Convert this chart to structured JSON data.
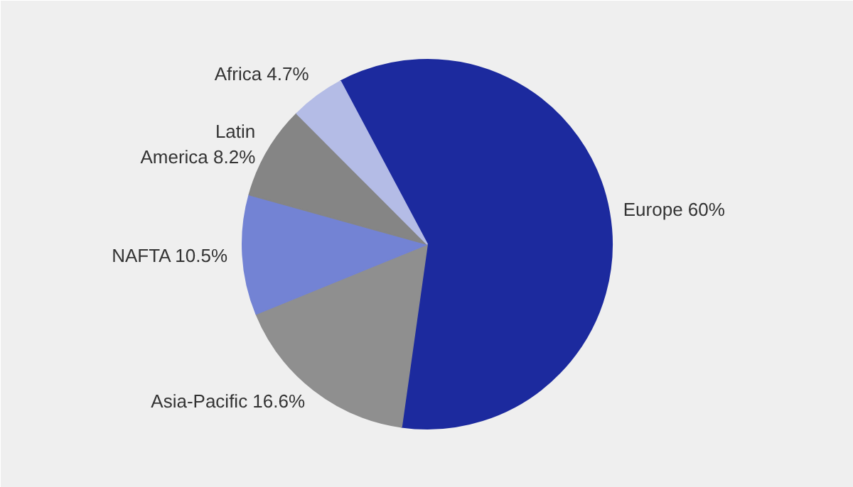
{
  "chart_data": {
    "type": "pie",
    "categories": [
      "Europe",
      "Asia-Pacific",
      "NAFTA",
      "Latin America",
      "Africa"
    ],
    "values": [
      60,
      16.6,
      10.5,
      8.2,
      4.7
    ],
    "colors": [
      "#1c2a9e",
      "#8f8f8f",
      "#7383d4",
      "#858585",
      "#b4bce6"
    ],
    "value_labels": [
      "60%",
      "16.6%",
      "10.5%",
      "8.2%",
      "4.7%"
    ]
  }
}
